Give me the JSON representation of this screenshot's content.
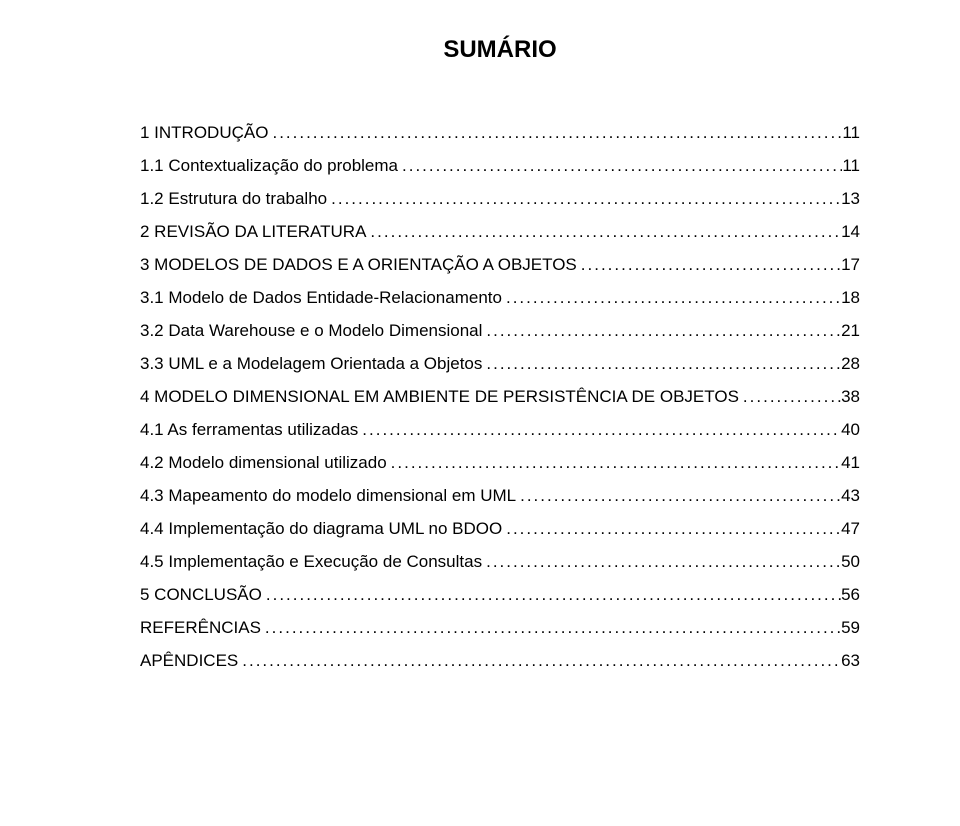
{
  "title": "SUMÁRIO",
  "font": {
    "title_size_pt": 18,
    "body_size_pt": 13,
    "family": "Arial",
    "color": "#000000",
    "background": "#ffffff"
  },
  "toc": [
    {
      "label": "1 INTRODUÇÃO",
      "page": "11",
      "indent": 0
    },
    {
      "label": "1.1 Contextualização do problema",
      "page": "11",
      "indent": 1
    },
    {
      "label": "1.2 Estrutura do trabalho",
      "page": "13",
      "indent": 1
    },
    {
      "label": "2 REVISÃO DA LITERATURA",
      "page": "14",
      "indent": 0
    },
    {
      "label": "3 MODELOS DE DADOS E A ORIENTAÇÃO A OBJETOS",
      "page": "17",
      "indent": 0
    },
    {
      "label": "3.1 Modelo de Dados Entidade-Relacionamento",
      "page": "18",
      "indent": 1
    },
    {
      "label": "3.2 Data Warehouse e o Modelo Dimensional",
      "page": "21",
      "indent": 1
    },
    {
      "label": "3.3 UML e a Modelagem Orientada a Objetos",
      "page": "28",
      "indent": 1
    },
    {
      "label": "4 MODELO DIMENSIONAL EM AMBIENTE DE PERSISTÊNCIA DE OBJETOS",
      "page": "38",
      "indent": 0
    },
    {
      "label": "4.1 As ferramentas utilizadas",
      "page": "40",
      "indent": 1
    },
    {
      "label": "4.2 Modelo dimensional utilizado",
      "page": "41",
      "indent": 1
    },
    {
      "label": "4.3 Mapeamento do modelo dimensional em UML",
      "page": "43",
      "indent": 1
    },
    {
      "label": "4.4 Implementação do diagrama UML no BDOO",
      "page": "47",
      "indent": 1
    },
    {
      "label": "4.5 Implementação e Execução de Consultas",
      "page": "50",
      "indent": 1
    },
    {
      "label": "5 CONCLUSÃO",
      "page": "56",
      "indent": 0
    },
    {
      "label": "REFERÊNCIAS",
      "page": "59",
      "indent": 0
    },
    {
      "label": "APÊNDICES",
      "page": "63",
      "indent": 0
    }
  ]
}
